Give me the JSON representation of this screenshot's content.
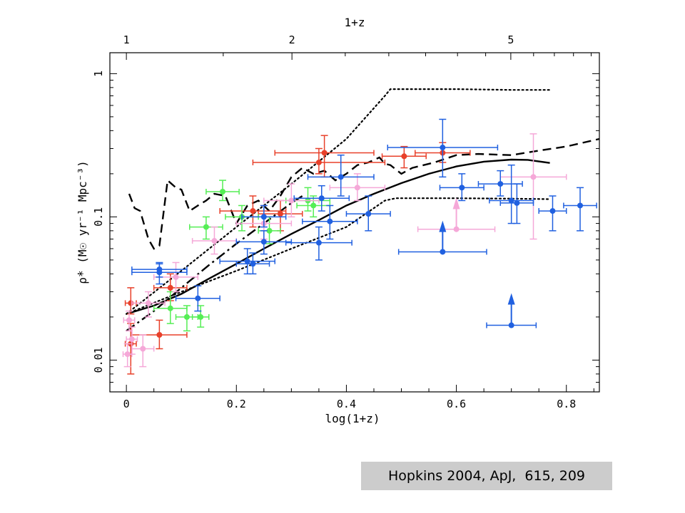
{
  "citation": "Hopkins 2004, ApJ,  615, 209",
  "chart_data": {
    "type": "scatter",
    "title": "",
    "xlabel": "log(1+z)",
    "ylabel": "ρ̇* (M☉ yr⁻¹ Mpc⁻³)",
    "top_axis_label": "1+z",
    "xlim": [
      -0.03,
      0.86
    ],
    "ylim": [
      0.006,
      1.4
    ],
    "y_scale": "log",
    "x_ticks": [
      0,
      0.2,
      0.4,
      0.6,
      0.8
    ],
    "x_tick_labels": [
      "0",
      "0.2",
      "0.4",
      "0.6",
      "0.8"
    ],
    "y_ticks": [
      0.01,
      0.1,
      1
    ],
    "y_tick_labels": [
      "0.01",
      "0.1",
      "1"
    ],
    "top_ticks": [
      1,
      2,
      5
    ],
    "top_tick_labels": [
      "1",
      "2",
      "5"
    ],
    "grid": false,
    "legend": "none",
    "series": [
      {
        "color": "#e8402a",
        "points": [
          {
            "x": 0.008,
            "y": 0.013,
            "xerr": 0.01,
            "ylo": 0.008,
            "yhi": 0.018
          },
          {
            "x": 0.008,
            "y": 0.025,
            "xerr": 0.01,
            "ylo": 0.021,
            "yhi": 0.032
          },
          {
            "x": 0.06,
            "y": 0.015,
            "xerr": 0.05,
            "ylo": 0.012,
            "yhi": 0.019
          },
          {
            "x": 0.08,
            "y": 0.032,
            "xerr": 0.03,
            "ylo": 0.026,
            "yhi": 0.04
          },
          {
            "x": 0.23,
            "y": 0.11,
            "xerr": 0.06,
            "ylo": 0.085,
            "yhi": 0.14
          },
          {
            "x": 0.28,
            "y": 0.105,
            "xerr": 0.04,
            "ylo": 0.08,
            "yhi": 0.13
          },
          {
            "x": 0.35,
            "y": 0.24,
            "xerr": 0.12,
            "ylo": 0.2,
            "yhi": 0.3
          },
          {
            "x": 0.36,
            "y": 0.28,
            "xerr": 0.09,
            "ylo": 0.19,
            "yhi": 0.37
          },
          {
            "x": 0.505,
            "y": 0.265,
            "xerr": 0.04,
            "ylo": 0.22,
            "yhi": 0.31
          },
          {
            "x": 0.575,
            "y": 0.28,
            "xerr": 0.05,
            "ylo": 0.24,
            "yhi": 0.33
          }
        ]
      },
      {
        "color": "#55ee55",
        "points": [
          {
            "x": 0.08,
            "y": 0.023,
            "xerr": 0.03,
            "ylo": 0.018,
            "yhi": 0.03
          },
          {
            "x": 0.11,
            "y": 0.02,
            "xerr": 0.02,
            "ylo": 0.016,
            "yhi": 0.024
          },
          {
            "x": 0.135,
            "y": 0.02,
            "xerr": 0.015,
            "ylo": 0.017,
            "yhi": 0.024
          },
          {
            "x": 0.145,
            "y": 0.085,
            "xerr": 0.03,
            "ylo": 0.07,
            "yhi": 0.1
          },
          {
            "x": 0.175,
            "y": 0.15,
            "xerr": 0.03,
            "ylo": 0.13,
            "yhi": 0.18
          },
          {
            "x": 0.21,
            "y": 0.1,
            "xerr": 0.03,
            "ylo": 0.08,
            "yhi": 0.12
          },
          {
            "x": 0.26,
            "y": 0.08,
            "xerr": 0.02,
            "ylo": 0.065,
            "yhi": 0.1
          },
          {
            "x": 0.33,
            "y": 0.13,
            "xerr": 0.04,
            "ylo": 0.11,
            "yhi": 0.16
          },
          {
            "x": 0.34,
            "y": 0.12,
            "xerr": 0.03,
            "ylo": 0.1,
            "yhi": 0.14
          }
        ]
      },
      {
        "color": "#f5a8d8",
        "points": [
          {
            "x": 0.002,
            "y": 0.011,
            "xerr": 0.008,
            "ylo": 0.009,
            "yhi": 0.013
          },
          {
            "x": 0.005,
            "y": 0.019,
            "xerr": 0.01,
            "ylo": 0.016,
            "yhi": 0.022
          },
          {
            "x": 0.01,
            "y": 0.014,
            "xerr": 0.01,
            "ylo": 0.011,
            "yhi": 0.017
          },
          {
            "x": 0.03,
            "y": 0.012,
            "xerr": 0.02,
            "ylo": 0.009,
            "yhi": 0.015
          },
          {
            "x": 0.04,
            "y": 0.025,
            "xerr": 0.03,
            "ylo": 0.02,
            "yhi": 0.03
          },
          {
            "x": 0.09,
            "y": 0.038,
            "xerr": 0.04,
            "ylo": 0.03,
            "yhi": 0.048
          },
          {
            "x": 0.16,
            "y": 0.068,
            "xerr": 0.04,
            "ylo": 0.055,
            "yhi": 0.085
          },
          {
            "x": 0.25,
            "y": 0.09,
            "xerr": 0.05,
            "ylo": 0.07,
            "yhi": 0.12
          },
          {
            "x": 0.3,
            "y": 0.13,
            "xerr": 0.05,
            "ylo": 0.1,
            "yhi": 0.17
          },
          {
            "x": 0.42,
            "y": 0.16,
            "xerr": 0.05,
            "ylo": 0.13,
            "yhi": 0.2
          },
          {
            "x": 0.74,
            "y": 0.19,
            "xerr": 0.06,
            "ylo": 0.07,
            "yhi": 0.38
          },
          {
            "x": 0.6,
            "y": 0.082,
            "xerr": 0.07,
            "ylo": 0.082,
            "yhi": 0.13,
            "lower_limit": true
          }
        ]
      },
      {
        "color": "#2060e0",
        "points": [
          {
            "x": 0.06,
            "y": 0.041,
            "xerr": 0.05,
            "ylo": 0.034,
            "yhi": 0.047
          },
          {
            "x": 0.06,
            "y": 0.043,
            "xerr": 0.05,
            "ylo": 0.038,
            "yhi": 0.048
          },
          {
            "x": 0.13,
            "y": 0.027,
            "xerr": 0.04,
            "ylo": 0.022,
            "yhi": 0.033
          },
          {
            "x": 0.22,
            "y": 0.049,
            "xerr": 0.05,
            "ylo": 0.04,
            "yhi": 0.06
          },
          {
            "x": 0.23,
            "y": 0.047,
            "xerr": 0.03,
            "ylo": 0.04,
            "yhi": 0.056
          },
          {
            "x": 0.25,
            "y": 0.067,
            "xerr": 0.05,
            "ylo": 0.055,
            "yhi": 0.08
          },
          {
            "x": 0.25,
            "y": 0.1,
            "xerr": 0.04,
            "ylo": 0.085,
            "yhi": 0.12
          },
          {
            "x": 0.35,
            "y": 0.066,
            "xerr": 0.06,
            "ylo": 0.05,
            "yhi": 0.085
          },
          {
            "x": 0.355,
            "y": 0.135,
            "xerr": 0.05,
            "ylo": 0.11,
            "yhi": 0.165
          },
          {
            "x": 0.37,
            "y": 0.093,
            "xerr": 0.05,
            "ylo": 0.07,
            "yhi": 0.12
          },
          {
            "x": 0.39,
            "y": 0.19,
            "xerr": 0.06,
            "ylo": 0.14,
            "yhi": 0.27
          },
          {
            "x": 0.44,
            "y": 0.105,
            "xerr": 0.04,
            "ylo": 0.08,
            "yhi": 0.14
          },
          {
            "x": 0.575,
            "y": 0.305,
            "xerr": 0.1,
            "ylo": 0.19,
            "yhi": 0.48
          },
          {
            "x": 0.61,
            "y": 0.16,
            "xerr": 0.04,
            "ylo": 0.13,
            "yhi": 0.2
          },
          {
            "x": 0.68,
            "y": 0.17,
            "xerr": 0.04,
            "ylo": 0.14,
            "yhi": 0.21
          },
          {
            "x": 0.7,
            "y": 0.13,
            "xerr": 0.04,
            "ylo": 0.09,
            "yhi": 0.23
          },
          {
            "x": 0.71,
            "y": 0.125,
            "xerr": 0.03,
            "ylo": 0.09,
            "yhi": 0.17
          },
          {
            "x": 0.775,
            "y": 0.11,
            "xerr": 0.025,
            "ylo": 0.08,
            "yhi": 0.14
          },
          {
            "x": 0.825,
            "y": 0.12,
            "xerr": 0.03,
            "ylo": 0.08,
            "yhi": 0.16
          },
          {
            "x": 0.575,
            "y": 0.057,
            "xerr": 0.08,
            "ylo": 0.057,
            "yhi": 0.09,
            "lower_limit": true
          },
          {
            "x": 0.7,
            "y": 0.0175,
            "xerr": 0.045,
            "ylo": 0.0175,
            "yhi": 0.028,
            "lower_limit": true
          }
        ]
      }
    ],
    "curves": [
      {
        "style": "solid",
        "points": [
          [
            0,
            0.021
          ],
          [
            0.05,
            0.024
          ],
          [
            0.1,
            0.029
          ],
          [
            0.15,
            0.037
          ],
          [
            0.2,
            0.047
          ],
          [
            0.25,
            0.06
          ],
          [
            0.3,
            0.076
          ],
          [
            0.35,
            0.095
          ],
          [
            0.4,
            0.12
          ],
          [
            0.45,
            0.145
          ],
          [
            0.5,
            0.172
          ],
          [
            0.55,
            0.2
          ],
          [
            0.6,
            0.225
          ],
          [
            0.65,
            0.243
          ],
          [
            0.7,
            0.251
          ],
          [
            0.73,
            0.25
          ],
          [
            0.77,
            0.238
          ]
        ]
      },
      {
        "style": "dashed",
        "points": [
          [
            0.005,
            0.145
          ],
          [
            0.015,
            0.115
          ],
          [
            0.025,
            0.11
          ],
          [
            0.04,
            0.07
          ],
          [
            0.05,
            0.06
          ],
          [
            0.06,
            0.063
          ],
          [
            0.075,
            0.18
          ],
          [
            0.09,
            0.16
          ],
          [
            0.1,
            0.155
          ],
          [
            0.115,
            0.11
          ],
          [
            0.13,
            0.12
          ],
          [
            0.145,
            0.13
          ],
          [
            0.16,
            0.145
          ],
          [
            0.18,
            0.14
          ],
          [
            0.2,
            0.09
          ],
          [
            0.22,
            0.12
          ],
          [
            0.24,
            0.13
          ],
          [
            0.26,
            0.11
          ],
          [
            0.28,
            0.14
          ],
          [
            0.3,
            0.19
          ],
          [
            0.32,
            0.22
          ],
          [
            0.34,
            0.2
          ],
          [
            0.36,
            0.21
          ],
          [
            0.38,
            0.18
          ],
          [
            0.4,
            0.2
          ],
          [
            0.42,
            0.23
          ],
          [
            0.44,
            0.24
          ],
          [
            0.46,
            0.26
          ],
          [
            0.47,
            0.235
          ],
          [
            0.48,
            0.23
          ],
          [
            0.5,
            0.2
          ],
          [
            0.52,
            0.22
          ],
          [
            0.56,
            0.24
          ],
          [
            0.6,
            0.27
          ],
          [
            0.64,
            0.275
          ],
          [
            0.7,
            0.27
          ],
          [
            0.75,
            0.29
          ],
          [
            0.8,
            0.31
          ],
          [
            0.86,
            0.35
          ]
        ]
      },
      {
        "style": "dashdot",
        "points": [
          [
            0,
            0.016
          ],
          [
            0.05,
            0.022
          ],
          [
            0.1,
            0.032
          ],
          [
            0.15,
            0.046
          ],
          [
            0.2,
            0.065
          ],
          [
            0.25,
            0.09
          ],
          [
            0.3,
            0.125
          ],
          [
            0.32,
            0.14
          ]
        ]
      },
      {
        "style": "dotted",
        "points": [
          [
            0,
            0.021
          ],
          [
            0.1,
            0.03
          ],
          [
            0.2,
            0.042
          ],
          [
            0.3,
            0.06
          ],
          [
            0.4,
            0.085
          ],
          [
            0.47,
            0.13
          ],
          [
            0.49,
            0.135
          ],
          [
            0.6,
            0.135
          ],
          [
            0.7,
            0.134
          ],
          [
            0.77,
            0.133
          ]
        ]
      },
      {
        "style": "dotted",
        "points": [
          [
            0,
            0.021
          ],
          [
            0.1,
            0.042
          ],
          [
            0.2,
            0.085
          ],
          [
            0.3,
            0.17
          ],
          [
            0.4,
            0.35
          ],
          [
            0.47,
            0.7
          ],
          [
            0.48,
            0.78
          ],
          [
            0.6,
            0.78
          ],
          [
            0.7,
            0.77
          ],
          [
            0.77,
            0.77
          ]
        ]
      }
    ]
  }
}
